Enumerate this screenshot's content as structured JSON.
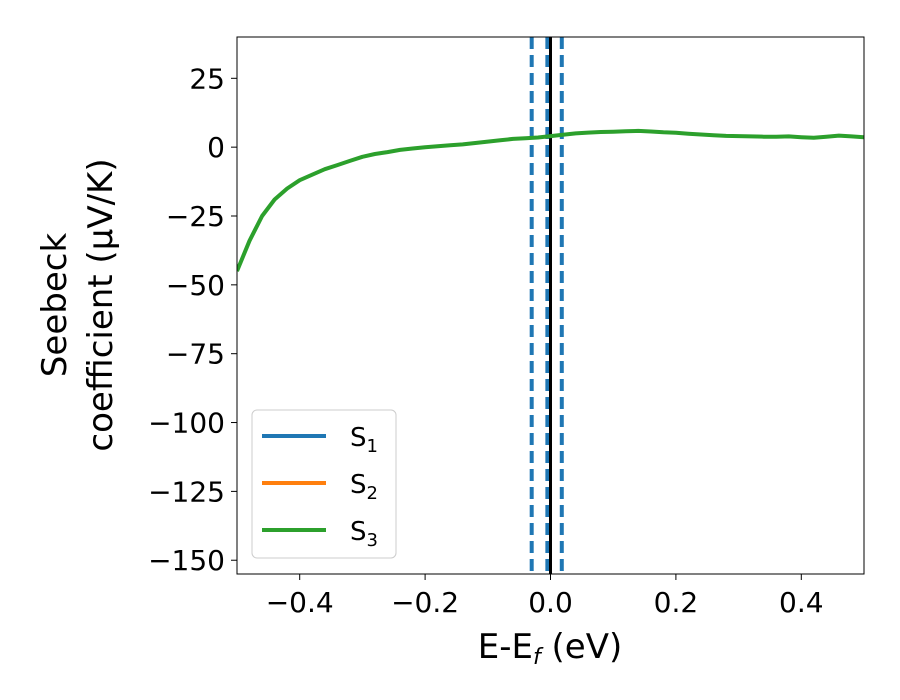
{
  "chart_data": {
    "type": "line",
    "xlabel_main": "E-E",
    "xlabel_sub": "f",
    "xlabel_unit": " (eV)",
    "ylabel_line1": "Seebeck",
    "ylabel_line2": "coefficient  (μV/K)",
    "xlim": [
      -0.5,
      0.5
    ],
    "ylim": [
      -155,
      40
    ],
    "x_ticks": [
      -0.4,
      -0.2,
      0.0,
      0.2,
      0.4
    ],
    "x_tick_labels": [
      "−0.4",
      "−0.2",
      "0.0",
      "0.2",
      "0.4"
    ],
    "y_ticks": [
      25,
      0,
      -25,
      -50,
      -75,
      -100,
      -125,
      -150
    ],
    "y_tick_labels": [
      "25",
      "0",
      "−25",
      "−50",
      "−75",
      "−100",
      "−125",
      "−150"
    ],
    "grid": false,
    "legend_position": "lower-left",
    "series": [
      {
        "name_main": "S",
        "name_sub": "1",
        "color": "#1f77b4",
        "vlines_dashed": [
          -0.03,
          -0.005,
          0.018
        ]
      },
      {
        "name_main": "S",
        "name_sub": "2",
        "color": "#ff7f0e"
      },
      {
        "name_main": "S",
        "name_sub": "3",
        "color": "#2ca02c",
        "x": [
          -0.5,
          -0.48,
          -0.46,
          -0.44,
          -0.42,
          -0.4,
          -0.38,
          -0.36,
          -0.34,
          -0.32,
          -0.3,
          -0.28,
          -0.26,
          -0.24,
          -0.22,
          -0.2,
          -0.18,
          -0.16,
          -0.14,
          -0.12,
          -0.1,
          -0.08,
          -0.06,
          -0.04,
          -0.02,
          0.0,
          0.02,
          0.04,
          0.06,
          0.08,
          0.1,
          0.12,
          0.14,
          0.16,
          0.18,
          0.2,
          0.22,
          0.24,
          0.26,
          0.28,
          0.3,
          0.32,
          0.34,
          0.36,
          0.38,
          0.4,
          0.42,
          0.44,
          0.46,
          0.48,
          0.5
        ],
        "y": [
          -45,
          -34,
          -25,
          -19,
          -15,
          -12,
          -10,
          -8,
          -6.5,
          -5,
          -3.5,
          -2.5,
          -1.8,
          -1,
          -0.5,
          0,
          0.3,
          0.7,
          1,
          1.5,
          2,
          2.5,
          3,
          3.2,
          3.5,
          4,
          4.5,
          5,
          5.3,
          5.5,
          5.6,
          5.8,
          5.9,
          5.7,
          5.4,
          5.2,
          4.9,
          4.6,
          4.3,
          4.1,
          4.0,
          3.9,
          3.8,
          3.8,
          3.9,
          3.6,
          3.4,
          3.8,
          4.2,
          3.9,
          3.6
        ]
      }
    ],
    "reference_vline": {
      "x": 0.0,
      "color": "#000000"
    }
  }
}
